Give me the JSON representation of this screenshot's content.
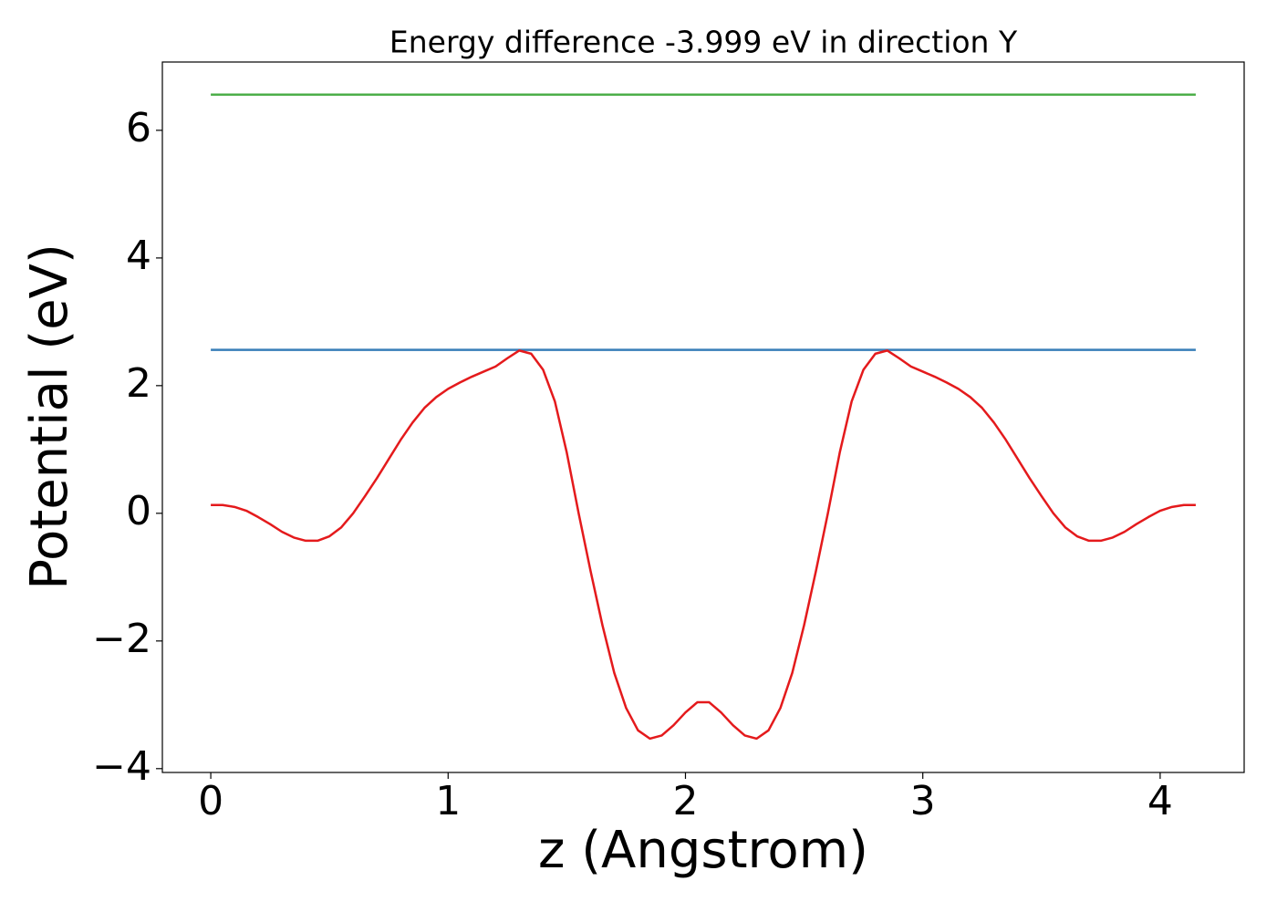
{
  "chart_data": {
    "type": "line",
    "title": "Energy difference -3.999 eV in direction Y",
    "xlabel": "z (Angstrom)",
    "ylabel": "Potential (eV)",
    "xlim": [
      -0.204,
      4.354
    ],
    "ylim": [
      -4.06,
      7.07
    ],
    "xticks": [
      0,
      1,
      2,
      3,
      4
    ],
    "yticks": [
      {
        "value": -4,
        "label": "−4"
      },
      {
        "value": -2,
        "label": "−2"
      },
      0,
      2,
      4,
      6
    ],
    "grid": false,
    "series": [
      {
        "color": "#377eb8",
        "x": [
          0,
          4.15
        ],
        "values": [
          2.56,
          2.56
        ]
      },
      {
        "color": "#4daf4a",
        "x": [
          0,
          4.15
        ],
        "values": [
          6.56,
          6.56
        ]
      },
      {
        "color": "#e41a1c",
        "x": [
          0,
          0.05,
          0.1,
          0.15,
          0.2,
          0.25,
          0.3,
          0.35,
          0.4,
          0.45,
          0.5,
          0.55,
          0.6,
          0.65,
          0.7,
          0.75,
          0.8,
          0.85,
          0.9,
          0.95,
          1,
          1.05,
          1.1,
          1.15,
          1.2,
          1.25,
          1.3,
          1.35,
          1.4,
          1.45,
          1.5,
          1.55,
          1.6,
          1.65,
          1.7,
          1.75,
          1.8,
          1.85,
          1.9,
          1.95,
          2,
          2.05,
          2.1,
          2.15,
          2.2,
          2.25,
          2.3,
          2.35,
          2.4,
          2.45,
          2.5,
          2.55,
          2.6,
          2.65,
          2.7,
          2.75,
          2.8,
          2.85,
          2.9,
          2.95,
          3,
          3.05,
          3.1,
          3.15,
          3.2,
          3.25,
          3.3,
          3.35,
          3.4,
          3.45,
          3.5,
          3.55,
          3.6,
          3.65,
          3.7,
          3.75,
          3.8,
          3.85,
          3.9,
          3.95,
          4,
          4.05,
          4.1,
          4.15
        ],
        "values": [
          0.13,
          0.13,
          0.1,
          0.04,
          -0.06,
          -0.17,
          -0.29,
          -0.38,
          -0.43,
          -0.43,
          -0.36,
          -0.22,
          0,
          0.27,
          0.55,
          0.85,
          1.15,
          1.42,
          1.65,
          1.82,
          1.95,
          2.05,
          2.14,
          2.22,
          2.3,
          2.43,
          2.55,
          2.5,
          2.25,
          1.75,
          0.95,
          0,
          -0.9,
          -1.75,
          -2.5,
          -3.05,
          -3.4,
          -3.53,
          -3.48,
          -3.32,
          -3.12,
          -2.96,
          -2.96,
          -3.12,
          -3.32,
          -3.48,
          -3.53,
          -3.4,
          -3.05,
          -2.5,
          -1.75,
          -0.9,
          0,
          0.95,
          1.75,
          2.25,
          2.5,
          2.55,
          2.43,
          2.3,
          2.22,
          2.14,
          2.05,
          1.95,
          1.82,
          1.65,
          1.42,
          1.15,
          0.85,
          0.55,
          0.27,
          0,
          -0.22,
          -0.36,
          -0.43,
          -0.43,
          -0.38,
          -0.29,
          -0.17,
          -0.06,
          0.04,
          0.1,
          0.13,
          0.13
        ]
      }
    ]
  }
}
